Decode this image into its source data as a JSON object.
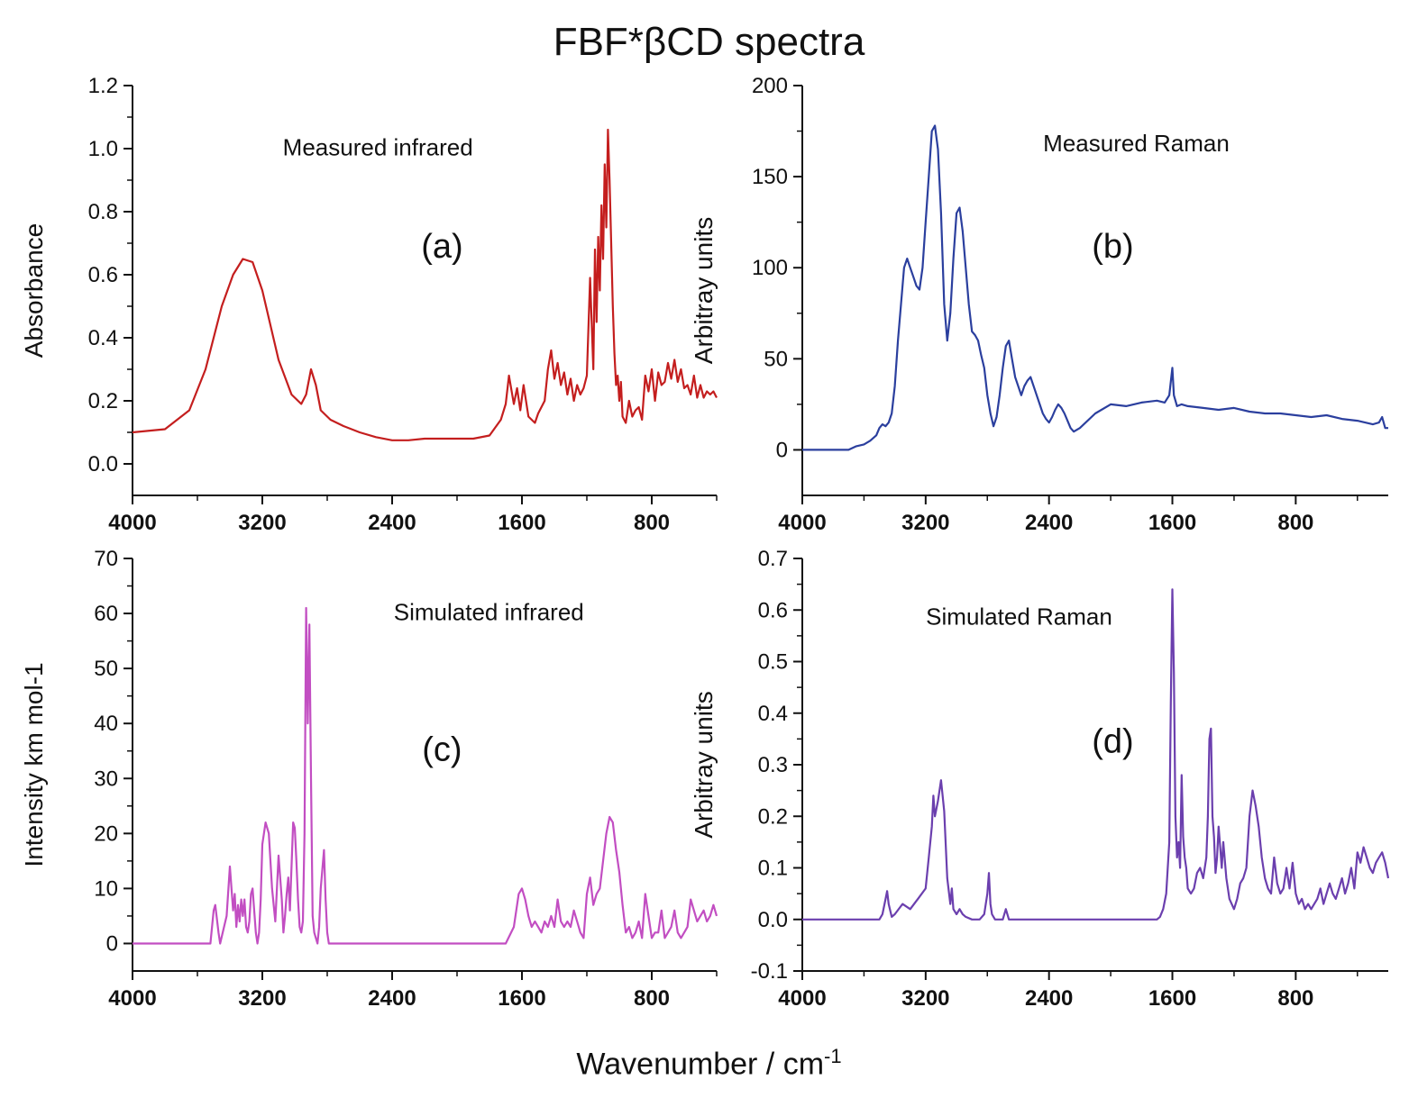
{
  "figure": {
    "title": "FBF*βCD spectra",
    "xlabel_main": "Wavenumber / cm",
    "xlabel_sup": "-1"
  },
  "chart_data": [
    {
      "id": "a",
      "type": "line",
      "panel_label": "(a)",
      "annotation": "Measured infrared",
      "ylabel": "Absorbance",
      "xlim": [
        4000,
        400
      ],
      "ylim": [
        -0.1,
        1.2
      ],
      "xticks": [
        "4000",
        "3200",
        "2400",
        "1600",
        "800"
      ],
      "yticks": [
        "0.0",
        "0.2",
        "0.4",
        "0.6",
        "0.8",
        "1.0",
        "1.2"
      ],
      "color": "#c41e1e",
      "series": [
        {
          "x": [
            4000,
            3800,
            3650,
            3550,
            3450,
            3380,
            3320,
            3260,
            3200,
            3100,
            3020,
            2960,
            2930,
            2900,
            2870,
            2840,
            2780,
            2700,
            2600,
            2500,
            2400,
            2300,
            2200,
            2000,
            1900,
            1800,
            1730,
            1700,
            1680,
            1650,
            1630,
            1610,
            1590,
            1560,
            1520,
            1500,
            1460,
            1440,
            1420,
            1400,
            1380,
            1360,
            1340,
            1320,
            1300,
            1280,
            1260,
            1240,
            1220,
            1200,
            1180,
            1160,
            1150,
            1140,
            1130,
            1120,
            1110,
            1100,
            1090,
            1080,
            1070,
            1060,
            1050,
            1040,
            1030,
            1020,
            1010,
            1000,
            990,
            980,
            960,
            940,
            920,
            900,
            880,
            860,
            840,
            820,
            800,
            780,
            760,
            740,
            720,
            700,
            680,
            660,
            640,
            620,
            600,
            580,
            560,
            540,
            520,
            500,
            480,
            460,
            440,
            420,
            400
          ],
          "y": [
            0.1,
            0.11,
            0.17,
            0.3,
            0.5,
            0.6,
            0.65,
            0.64,
            0.55,
            0.33,
            0.22,
            0.19,
            0.22,
            0.3,
            0.25,
            0.17,
            0.14,
            0.12,
            0.1,
            0.085,
            0.075,
            0.075,
            0.08,
            0.08,
            0.08,
            0.09,
            0.14,
            0.19,
            0.28,
            0.19,
            0.24,
            0.17,
            0.25,
            0.15,
            0.13,
            0.16,
            0.2,
            0.3,
            0.36,
            0.27,
            0.32,
            0.25,
            0.29,
            0.22,
            0.27,
            0.2,
            0.25,
            0.22,
            0.24,
            0.28,
            0.59,
            0.3,
            0.68,
            0.45,
            0.72,
            0.55,
            0.82,
            0.65,
            0.95,
            0.75,
            1.06,
            0.9,
            0.7,
            0.5,
            0.35,
            0.25,
            0.28,
            0.2,
            0.26,
            0.15,
            0.13,
            0.2,
            0.15,
            0.17,
            0.18,
            0.14,
            0.28,
            0.23,
            0.3,
            0.2,
            0.29,
            0.25,
            0.26,
            0.32,
            0.27,
            0.33,
            0.26,
            0.3,
            0.24,
            0.25,
            0.22,
            0.28,
            0.21,
            0.25,
            0.21,
            0.23,
            0.22,
            0.23,
            0.21
          ]
        }
      ]
    },
    {
      "id": "b",
      "type": "line",
      "panel_label": "(b)",
      "annotation": "Measured Raman",
      "ylabel": "Arbitray units",
      "xlim": [
        4000,
        200
      ],
      "ylim": [
        -25,
        200
      ],
      "xticks": [
        "4000",
        "3200",
        "2400",
        "1600",
        "800"
      ],
      "yticks": [
        "0",
        "50",
        "100",
        "150",
        "200"
      ],
      "color": "#2b3f9e",
      "series": [
        {
          "x": [
            4000,
            3700,
            3650,
            3600,
            3560,
            3520,
            3500,
            3480,
            3460,
            3440,
            3420,
            3400,
            3380,
            3360,
            3340,
            3320,
            3300,
            3280,
            3260,
            3240,
            3220,
            3200,
            3180,
            3160,
            3140,
            3120,
            3100,
            3080,
            3060,
            3040,
            3020,
            3000,
            2980,
            2960,
            2940,
            2920,
            2900,
            2880,
            2860,
            2840,
            2820,
            2800,
            2780,
            2760,
            2740,
            2720,
            2700,
            2680,
            2660,
            2640,
            2620,
            2600,
            2580,
            2560,
            2540,
            2520,
            2500,
            2480,
            2460,
            2440,
            2420,
            2400,
            2380,
            2360,
            2340,
            2320,
            2300,
            2280,
            2260,
            2240,
            2200,
            2100,
            2000,
            1900,
            1800,
            1700,
            1650,
            1620,
            1600,
            1590,
            1570,
            1540,
            1500,
            1400,
            1300,
            1200,
            1100,
            1000,
            900,
            800,
            700,
            600,
            500,
            400,
            300,
            260,
            240,
            220,
            200
          ],
          "y": [
            0,
            0,
            2,
            3,
            5,
            8,
            12,
            14,
            13,
            15,
            20,
            35,
            60,
            80,
            100,
            105,
            100,
            95,
            90,
            88,
            100,
            125,
            150,
            175,
            178,
            165,
            130,
            80,
            60,
            75,
            105,
            130,
            133,
            120,
            100,
            80,
            65,
            63,
            60,
            52,
            45,
            30,
            20,
            13,
            18,
            30,
            45,
            57,
            60,
            50,
            40,
            35,
            30,
            35,
            38,
            40,
            35,
            30,
            25,
            20,
            17,
            15,
            18,
            22,
            25,
            23,
            20,
            16,
            12,
            10,
            12,
            20,
            25,
            24,
            26,
            27,
            26,
            30,
            45,
            30,
            24,
            25,
            24,
            23,
            22,
            23,
            21,
            20,
            20,
            19,
            18,
            19,
            17,
            16,
            14,
            15,
            18,
            12,
            12
          ]
        }
      ]
    },
    {
      "id": "c",
      "type": "line",
      "panel_label": "(c)",
      "annotation": "Simulated infrared",
      "ylabel": "Intensity km  mol-1",
      "xlim": [
        4000,
        400
      ],
      "ylim": [
        -5,
        70
      ],
      "xticks": [
        "4000",
        "3200",
        "2400",
        "1600",
        "800"
      ],
      "yticks": [
        "0",
        "10",
        "20",
        "30",
        "40",
        "50",
        "60",
        "70"
      ],
      "color": "#c24ec2",
      "series": [
        {
          "x": [
            4000,
            3520,
            3500,
            3490,
            3470,
            3460,
            3420,
            3400,
            3380,
            3370,
            3360,
            3350,
            3340,
            3330,
            3320,
            3310,
            3300,
            3290,
            3280,
            3270,
            3260,
            3240,
            3230,
            3220,
            3210,
            3200,
            3180,
            3160,
            3140,
            3120,
            3100,
            3080,
            3070,
            3060,
            3050,
            3040,
            3030,
            3010,
            3000,
            2990,
            2980,
            2970,
            2960,
            2950,
            2940,
            2930,
            2920,
            2910,
            2900,
            2890,
            2880,
            2870,
            2860,
            2850,
            2840,
            2820,
            2810,
            2800,
            2790,
            2780,
            2770,
            2760,
            2750,
            2740,
            2730,
            2720,
            2700,
            2690,
            2680,
            2670,
            2660,
            2640,
            2600,
            2400,
            2000,
            1700,
            1650,
            1620,
            1600,
            1580,
            1560,
            1540,
            1520,
            1500,
            1480,
            1460,
            1440,
            1420,
            1400,
            1380,
            1360,
            1340,
            1320,
            1300,
            1280,
            1260,
            1240,
            1220,
            1200,
            1180,
            1160,
            1140,
            1120,
            1100,
            1080,
            1060,
            1040,
            1020,
            1000,
            980,
            960,
            940,
            920,
            900,
            880,
            860,
            840,
            820,
            800,
            780,
            760,
            740,
            720,
            700,
            680,
            660,
            640,
            620,
            600,
            580,
            560,
            540,
            520,
            500,
            480,
            460,
            440,
            420,
            400
          ],
          "y": [
            0,
            0,
            6,
            7,
            2,
            0,
            5,
            14,
            6,
            9,
            3,
            7,
            4,
            8,
            5,
            8,
            3,
            2,
            4,
            9,
            10,
            2,
            0,
            2,
            8,
            18,
            22,
            20,
            10,
            4,
            16,
            8,
            2,
            5,
            9,
            12,
            6,
            22,
            21,
            15,
            8,
            3,
            2,
            4,
            20,
            61,
            40,
            58,
            30,
            5,
            2,
            1,
            0,
            3,
            10,
            17,
            8,
            2,
            0,
            0,
            0,
            0,
            0,
            0,
            0,
            0,
            0,
            0,
            0,
            0,
            0,
            0,
            0,
            0,
            0,
            0,
            3,
            9,
            10,
            8,
            5,
            3,
            4,
            3,
            2,
            4,
            3,
            5,
            3,
            8,
            4,
            3,
            4,
            3,
            6,
            4,
            2,
            1,
            9,
            12,
            7,
            9,
            10,
            15,
            20,
            23,
            22,
            17,
            13,
            7,
            2,
            3,
            1,
            2,
            4,
            1,
            9,
            5,
            1,
            2,
            2,
            6,
            1,
            2,
            3,
            6,
            2,
            1,
            2,
            3,
            8,
            6,
            4,
            5,
            6,
            4,
            5,
            7,
            5
          ]
        }
      ]
    },
    {
      "id": "d",
      "type": "line",
      "panel_label": "(d)",
      "annotation": "Simulated Raman",
      "ylabel": "Arbitray units",
      "xlim": [
        4000,
        200
      ],
      "ylim": [
        -0.1,
        0.7
      ],
      "xticks": [
        "4000",
        "3200",
        "2400",
        "1600",
        "800"
      ],
      "yticks": [
        "-0.1",
        "0.0",
        "0.1",
        "0.2",
        "0.3",
        "0.4",
        "0.5",
        "0.6",
        "0.7"
      ],
      "color": "#6b3fae",
      "series": [
        {
          "x": [
            4000,
            3500,
            3480,
            3460,
            3450,
            3440,
            3420,
            3400,
            3350,
            3300,
            3250,
            3200,
            3180,
            3160,
            3150,
            3140,
            3120,
            3100,
            3080,
            3060,
            3040,
            3030,
            3020,
            3000,
            2980,
            2960,
            2940,
            2900,
            2850,
            2820,
            2800,
            2790,
            2780,
            2770,
            2750,
            2700,
            2690,
            2680,
            2660,
            2600,
            2400,
            2000,
            1700,
            1680,
            1660,
            1640,
            1620,
            1610,
            1600,
            1590,
            1580,
            1570,
            1560,
            1550,
            1540,
            1530,
            1520,
            1510,
            1500,
            1480,
            1460,
            1440,
            1420,
            1400,
            1380,
            1370,
            1360,
            1350,
            1340,
            1330,
            1320,
            1310,
            1300,
            1290,
            1280,
            1270,
            1250,
            1230,
            1200,
            1180,
            1160,
            1140,
            1120,
            1100,
            1080,
            1060,
            1040,
            1020,
            1000,
            980,
            960,
            940,
            920,
            900,
            880,
            860,
            840,
            820,
            800,
            780,
            760,
            740,
            720,
            700,
            680,
            660,
            640,
            620,
            600,
            580,
            560,
            540,
            520,
            500,
            480,
            460,
            440,
            420,
            400,
            380,
            360,
            340,
            320,
            300,
            280,
            260,
            240,
            220,
            200
          ],
          "y": [
            0,
            0,
            0.01,
            0.04,
            0.055,
            0.03,
            0.005,
            0.01,
            0.03,
            0.02,
            0.04,
            0.06,
            0.12,
            0.18,
            0.24,
            0.2,
            0.23,
            0.27,
            0.21,
            0.08,
            0.03,
            0.06,
            0.02,
            0.01,
            0.02,
            0.01,
            0.005,
            0.0,
            0.0,
            0.01,
            0.05,
            0.09,
            0.03,
            0.01,
            0.0,
            0.0,
            0.01,
            0.02,
            0.0,
            0.0,
            0.0,
            0.0,
            0.0,
            0.005,
            0.02,
            0.05,
            0.15,
            0.42,
            0.64,
            0.48,
            0.2,
            0.12,
            0.15,
            0.1,
            0.28,
            0.16,
            0.12,
            0.1,
            0.06,
            0.05,
            0.06,
            0.09,
            0.1,
            0.08,
            0.12,
            0.2,
            0.35,
            0.37,
            0.2,
            0.16,
            0.09,
            0.12,
            0.18,
            0.14,
            0.1,
            0.15,
            0.08,
            0.04,
            0.02,
            0.04,
            0.07,
            0.08,
            0.1,
            0.2,
            0.25,
            0.22,
            0.18,
            0.12,
            0.08,
            0.06,
            0.05,
            0.12,
            0.07,
            0.05,
            0.06,
            0.1,
            0.06,
            0.11,
            0.05,
            0.03,
            0.04,
            0.02,
            0.03,
            0.02,
            0.03,
            0.04,
            0.06,
            0.03,
            0.05,
            0.07,
            0.05,
            0.04,
            0.06,
            0.08,
            0.05,
            0.07,
            0.1,
            0.06,
            0.13,
            0.11,
            0.14,
            0.12,
            0.1,
            0.09,
            0.11,
            0.12,
            0.13,
            0.11,
            0.08
          ]
        }
      ]
    }
  ]
}
